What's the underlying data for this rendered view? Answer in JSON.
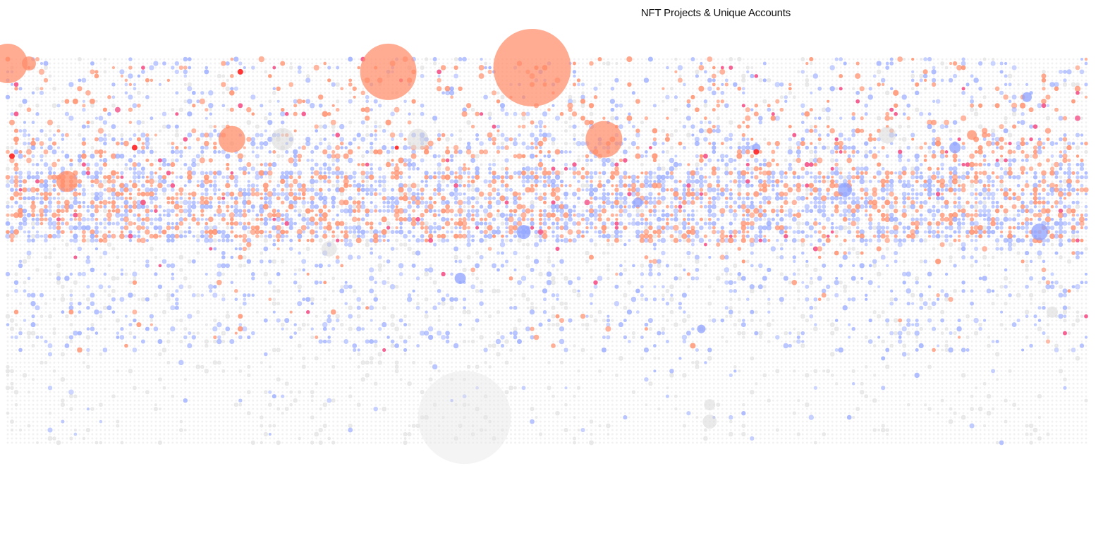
{
  "chart_data": {
    "type": "scatter",
    "title": "NFT Projects & Unique Accounts",
    "xlabel": "",
    "ylabel": "",
    "grid": false,
    "legend": "none",
    "palette": {
      "empty": "#e6e6e6",
      "light": "#d8d8d8",
      "blue": "#8ea2ff",
      "orange": "#ff8c69",
      "pink": "#f2457f",
      "red": "#ff2a2a"
    },
    "highlights": [
      {
        "col": 0,
        "row": 1,
        "value": 28,
        "color": "orange"
      },
      {
        "col": 5,
        "row": 1,
        "value": 10,
        "color": "orange"
      },
      {
        "col": 90,
        "row": 3,
        "value": 40,
        "color": "orange"
      },
      {
        "col": 124,
        "row": 2,
        "value": 55,
        "color": "orange"
      },
      {
        "col": 53,
        "row": 19,
        "value": 19,
        "color": "orange"
      },
      {
        "col": 141,
        "row": 19,
        "value": 26,
        "color": "orange"
      },
      {
        "col": 14,
        "row": 29,
        "value": 15,
        "color": "orange"
      },
      {
        "col": 65,
        "row": 19,
        "value": 16,
        "color": "light"
      },
      {
        "col": 97,
        "row": 19,
        "value": 15,
        "color": "light"
      },
      {
        "col": 208,
        "row": 18,
        "value": 12,
        "color": "light"
      },
      {
        "col": 244,
        "row": 41,
        "value": 12,
        "color": "blue"
      },
      {
        "col": 122,
        "row": 41,
        "value": 10,
        "color": "blue"
      },
      {
        "col": 107,
        "row": 52,
        "value": 8,
        "color": "blue"
      },
      {
        "col": 241,
        "row": 9,
        "value": 7,
        "color": "blue"
      },
      {
        "col": 76,
        "row": 45,
        "value": 11,
        "color": "light"
      },
      {
        "col": 108,
        "row": 85,
        "value": 66,
        "color": "empty"
      },
      {
        "col": 166,
        "row": 82,
        "value": 8,
        "color": "light"
      },
      {
        "col": 166,
        "row": 86,
        "value": 10,
        "color": "light"
      },
      {
        "col": 247,
        "row": 60,
        "value": 8,
        "color": "light"
      },
      {
        "col": 177,
        "row": 21,
        "value": 6,
        "color": "blue"
      },
      {
        "col": 224,
        "row": 21,
        "value": 8,
        "color": "blue"
      },
      {
        "col": 198,
        "row": 31,
        "value": 10,
        "color": "blue"
      },
      {
        "col": 149,
        "row": 34,
        "value": 7,
        "color": "blue"
      },
      {
        "col": 164,
        "row": 64,
        "value": 6,
        "color": "blue"
      },
      {
        "col": 228,
        "row": 18,
        "value": 7,
        "color": "orange"
      },
      {
        "col": 1,
        "row": 23,
        "value": 4,
        "color": "red"
      },
      {
        "col": 30,
        "row": 21,
        "value": 4,
        "color": "red"
      },
      {
        "col": 55,
        "row": 3,
        "value": 4,
        "color": "red"
      },
      {
        "col": 177,
        "row": 22,
        "value": 4,
        "color": "red"
      },
      {
        "col": 92,
        "row": 21,
        "value": 3,
        "color": "red"
      },
      {
        "col": 126,
        "row": 41,
        "value": 4,
        "color": "pink"
      },
      {
        "col": 253,
        "row": 14,
        "value": 4,
        "color": "pink"
      },
      {
        "col": 26,
        "row": 12,
        "value": 4,
        "color": "pink"
      },
      {
        "col": 32,
        "row": 34,
        "value": 4,
        "color": "pink"
      },
      {
        "col": 137,
        "row": 34,
        "value": 4,
        "color": "pink"
      }
    ]
  }
}
